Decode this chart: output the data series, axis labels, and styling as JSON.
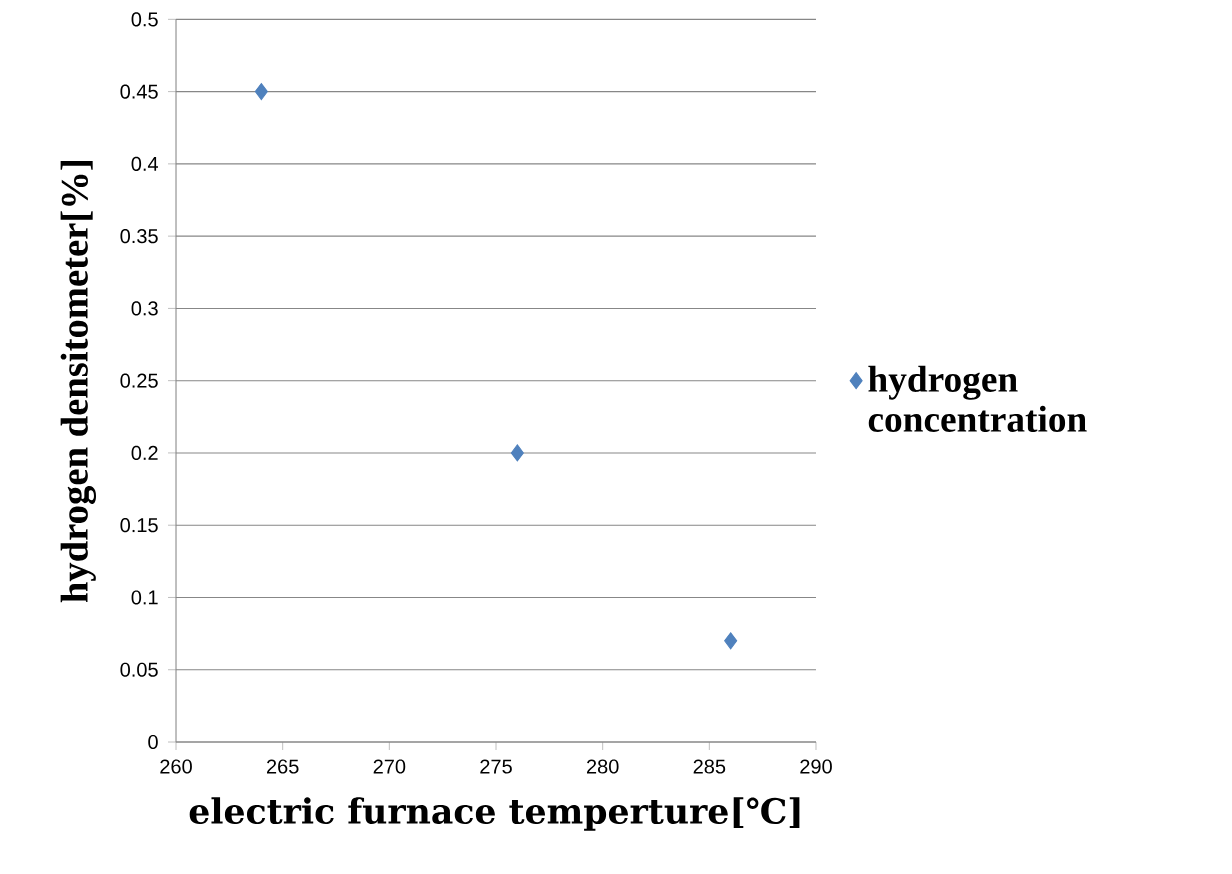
{
  "chart_data": {
    "type": "scatter",
    "xlabel": "electric furnace temperture[℃]",
    "ylabel": "hydrogen densitometer[%]",
    "x": [
      264,
      276,
      286
    ],
    "series": [
      {
        "name": "hydrogen concentration",
        "color": "#4f81bd",
        "values": [
          0.45,
          0.2,
          0.07
        ]
      }
    ],
    "xlim": [
      260,
      290
    ],
    "xticks": [
      260,
      265,
      270,
      275,
      280,
      285,
      290
    ],
    "ylim": [
      0,
      0.5
    ],
    "yticks": [
      0,
      0.05,
      0.1,
      0.15,
      0.2,
      0.25,
      0.3,
      0.35,
      0.4,
      0.45,
      0.5
    ],
    "grid": "y",
    "legend": "right",
    "marker": "diamond"
  }
}
